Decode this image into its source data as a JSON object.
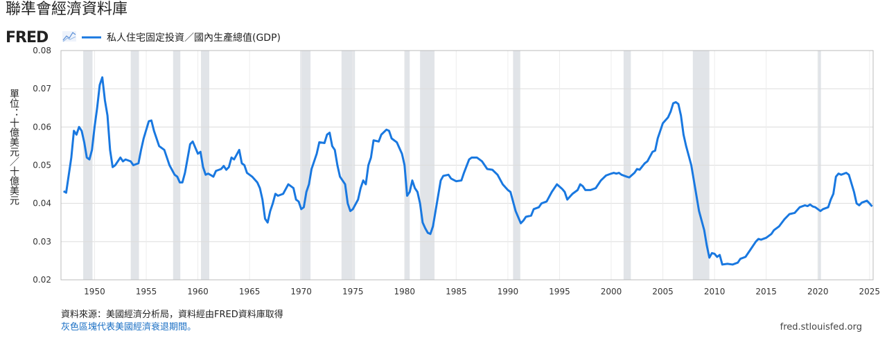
{
  "header": {
    "title": "聯準會經濟資料庫",
    "logo": "FRED"
  },
  "chart_data": {
    "type": "line",
    "y_label": "單位：十億美元／十億美元",
    "x": [
      1947,
      1947.25,
      1947.75,
      1948,
      1948.25,
      1948.5,
      1948.75,
      1949,
      1949.25,
      1949.5,
      1949.75,
      1950,
      1950.25,
      1950.5,
      1950.75,
      1951,
      1951.25,
      1951.5,
      1951.75,
      1952,
      1952.5,
      1952.75,
      1953,
      1953.5,
      1953.75,
      1954.25,
      1954.5,
      1954.75,
      1955.25,
      1955.5,
      1955.75,
      1956.25,
      1956.75,
      1957.25,
      1957.75,
      1958,
      1958.25,
      1958.5,
      1958.75,
      1959.25,
      1959.5,
      1960,
      1960.25,
      1960.5,
      1960.75,
      1961,
      1961.5,
      1961.75,
      1962.25,
      1962.5,
      1962.75,
      1963,
      1963.25,
      1963.5,
      1964,
      1964.25,
      1964.5,
      1964.75,
      1965.25,
      1965.75,
      1966,
      1966.25,
      1966.5,
      1966.75,
      1967,
      1967.25,
      1967.5,
      1967.75,
      1968.25,
      1968.75,
      1969.25,
      1969.5,
      1969.75,
      1970,
      1970.25,
      1970.5,
      1970.75,
      1971,
      1971.5,
      1971.75,
      1972.25,
      1972.5,
      1972.75,
      1973,
      1973.25,
      1973.5,
      1973.75,
      1974.25,
      1974.5,
      1974.75,
      1975,
      1975.5,
      1975.75,
      1976,
      1976.25,
      1976.5,
      1976.75,
      1977,
      1977.5,
      1977.75,
      1978.25,
      1978.5,
      1978.75,
      1979.25,
      1979.75,
      1980,
      1980.25,
      1980.5,
      1980.75,
      1981,
      1981.25,
      1981.5,
      1981.75,
      1982,
      1982.25,
      1982.5,
      1982.75,
      1983,
      1983.25,
      1983.5,
      1983.75,
      1984.25,
      1984.5,
      1985,
      1985.5,
      1985.75,
      1986.25,
      1986.5,
      1987,
      1987.5,
      1988,
      1988.5,
      1989,
      1989.5,
      1990,
      1990.25,
      1990.75,
      1991.25,
      1991.5,
      1991.75,
      1992.25,
      1992.5,
      1993,
      1993.25,
      1993.75,
      1994.25,
      1994.75,
      1995.25,
      1995.5,
      1995.75,
      1996.25,
      1996.75,
      1997,
      1997.25,
      1997.5,
      1998,
      1998.5,
      1999,
      1999.5,
      2000,
      2000.25,
      2000.5,
      2000.75,
      2001,
      2001.5,
      2001.75,
      2002.25,
      2002.5,
      2002.75,
      2003.25,
      2003.5,
      2004,
      2004.25,
      2004.5,
      2004.75,
      2005,
      2005.5,
      2005.75,
      2006,
      2006.25,
      2006.5,
      2006.75,
      2007,
      2007.25,
      2007.75,
      2008,
      2008.25,
      2008.5,
      2009,
      2009.25,
      2009.5,
      2009.75,
      2010,
      2010.25,
      2010.5,
      2010.75,
      2011.25,
      2011.75,
      2012.25,
      2012.5,
      2013,
      2013.5,
      2014,
      2014.25,
      2014.5,
      2015,
      2015.5,
      2015.75,
      2016.25,
      2016.75,
      2017.25,
      2017.75,
      2018.25,
      2018.75,
      2019,
      2019.25,
      2019.5,
      2019.75,
      2020.25,
      2020.5,
      2021,
      2021.25,
      2021.5,
      2021.75,
      2022,
      2022.25,
      2022.75,
      2023,
      2023.5,
      2023.75,
      2024,
      2024.25,
      2024.75,
      2025,
      2025.25
    ],
    "series": [
      {
        "name": "私人住宅固定投資／國內生產總值(GDP)",
        "color": "#1978e0",
        "values": [
          0.0432,
          0.0428,
          0.052,
          0.059,
          0.058,
          0.06,
          0.059,
          0.056,
          0.052,
          0.0515,
          0.054,
          0.06,
          0.065,
          0.071,
          0.073,
          0.067,
          0.063,
          0.054,
          0.0495,
          0.05,
          0.052,
          0.051,
          0.0515,
          0.051,
          0.05,
          0.0505,
          0.054,
          0.057,
          0.0615,
          0.0617,
          0.059,
          0.055,
          0.054,
          0.05,
          0.0475,
          0.047,
          0.0455,
          0.0455,
          0.048,
          0.0555,
          0.0562,
          0.053,
          0.0535,
          0.0495,
          0.0475,
          0.0478,
          0.047,
          0.0485,
          0.049,
          0.0498,
          0.0488,
          0.0495,
          0.052,
          0.0515,
          0.054,
          0.0505,
          0.05,
          0.048,
          0.047,
          0.0455,
          0.044,
          0.041,
          0.036,
          0.035,
          0.038,
          0.04,
          0.0425,
          0.042,
          0.0425,
          0.045,
          0.044,
          0.041,
          0.0405,
          0.0385,
          0.039,
          0.043,
          0.045,
          0.049,
          0.053,
          0.056,
          0.0558,
          0.058,
          0.0585,
          0.055,
          0.054,
          0.05,
          0.047,
          0.045,
          0.04,
          0.038,
          0.0385,
          0.041,
          0.044,
          0.046,
          0.045,
          0.05,
          0.052,
          0.0565,
          0.0562,
          0.058,
          0.0593,
          0.059,
          0.057,
          0.056,
          0.053,
          0.05,
          0.042,
          0.043,
          0.046,
          0.044,
          0.043,
          0.04,
          0.035,
          0.0335,
          0.0323,
          0.032,
          0.034,
          0.038,
          0.042,
          0.046,
          0.0472,
          0.0475,
          0.0465,
          0.0458,
          0.046,
          0.048,
          0.0515,
          0.052,
          0.052,
          0.051,
          0.049,
          0.0488,
          0.0475,
          0.045,
          0.0435,
          0.043,
          0.038,
          0.0348,
          0.0355,
          0.0365,
          0.0368,
          0.0385,
          0.039,
          0.04,
          0.0405,
          0.043,
          0.045,
          0.0438,
          0.043,
          0.041,
          0.0425,
          0.0435,
          0.045,
          0.0445,
          0.0435,
          0.0435,
          0.044,
          0.046,
          0.0473,
          0.0478,
          0.048,
          0.0478,
          0.048,
          0.0475,
          0.047,
          0.0468,
          0.048,
          0.049,
          0.0488,
          0.0505,
          0.051,
          0.0535,
          0.0538,
          0.057,
          0.059,
          0.061,
          0.0625,
          0.064,
          0.0662,
          0.0665,
          0.066,
          0.063,
          0.058,
          0.055,
          0.05,
          0.046,
          0.042,
          0.038,
          0.033,
          0.029,
          0.0258,
          0.027,
          0.0268,
          0.026,
          0.0265,
          0.024,
          0.0242,
          0.024,
          0.0245,
          0.0255,
          0.026,
          0.028,
          0.03,
          0.0307,
          0.0305,
          0.031,
          0.032,
          0.033,
          0.034,
          0.0358,
          0.0372,
          0.0375,
          0.039,
          0.0395,
          0.0393,
          0.0397,
          0.0392,
          0.039,
          0.038,
          0.0385,
          0.039,
          0.041,
          0.0425,
          0.047,
          0.0478,
          0.0475,
          0.048,
          0.0475,
          0.043,
          0.04,
          0.0395,
          0.0402,
          0.0407,
          0.04,
          0.0392
        ]
      }
    ],
    "recessions": [
      [
        1948.9,
        1949.8
      ],
      [
        1953.5,
        1954.3
      ],
      [
        1957.6,
        1958.3
      ],
      [
        1960.3,
        1961.1
      ],
      [
        1969.9,
        1970.9
      ],
      [
        1973.9,
        1975.2
      ],
      [
        1980.0,
        1980.5
      ],
      [
        1981.5,
        1982.9
      ],
      [
        1990.5,
        1991.2
      ],
      [
        2001.2,
        2001.9
      ],
      [
        2007.9,
        2009.5
      ],
      [
        2020.0,
        2020.3
      ]
    ],
    "recession_color": "#e1e4e8",
    "xlim": [
      1946.75,
      2025.35
    ],
    "xticks": [
      1950,
      1955,
      1960,
      1965,
      1970,
      1975,
      1980,
      1985,
      1990,
      1995,
      2000,
      2005,
      2010,
      2015,
      2020,
      2025
    ],
    "ylim": [
      0.02,
      0.08
    ],
    "yticks": [
      0.02,
      0.03,
      0.04,
      0.05,
      0.06,
      0.07,
      0.08
    ],
    "grid": true
  },
  "footer": {
    "source": "資料來源：美國經濟分析局，資料經由FRED資料庫取得",
    "note": "灰色區塊代表美國經濟衰退期間。",
    "url": "fred.stlouisfed.org"
  }
}
